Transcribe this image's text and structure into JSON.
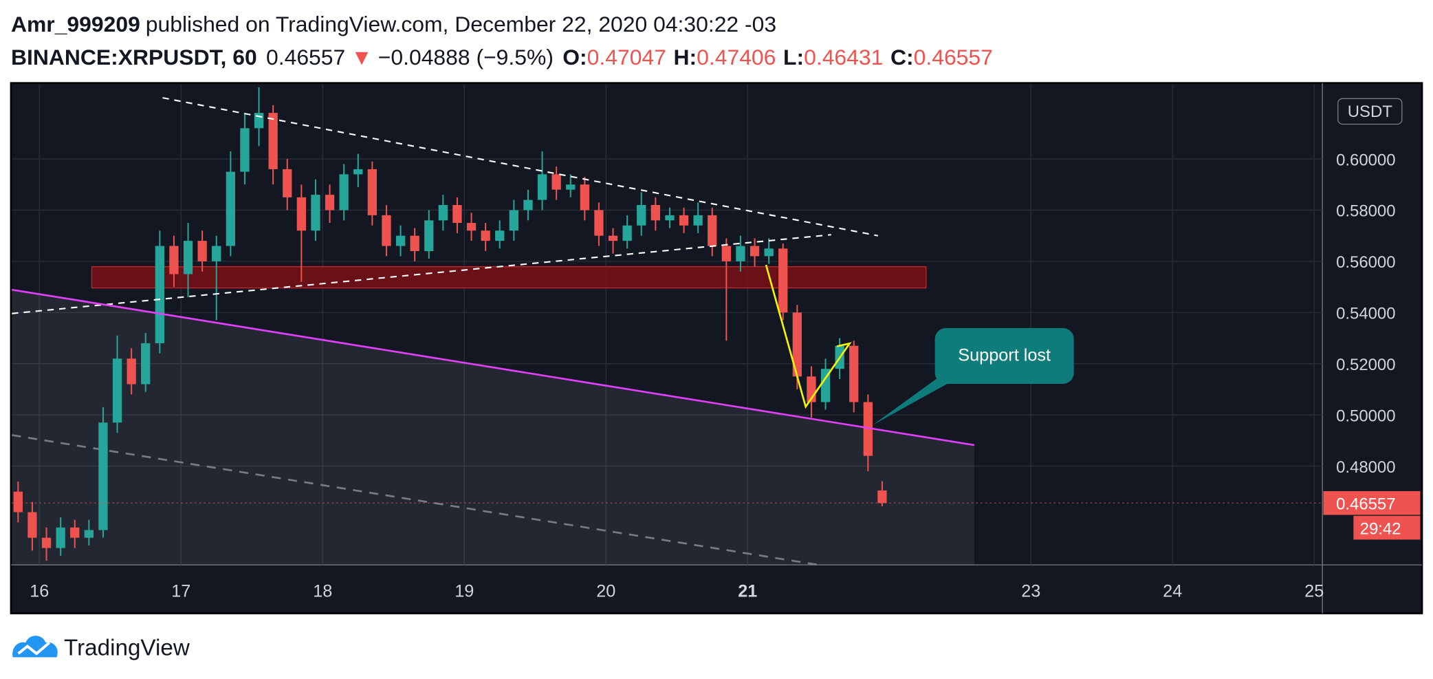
{
  "header": {
    "publisher": "Amr_999209",
    "published": "published on TradingView.com, December 22, 2020 04:30:22 -03",
    "symbol": "BINANCE:XRPUSDT, 60",
    "last": "0.46557",
    "arrow": "▼",
    "change": "−0.04888 (−9.5%)",
    "o_label": "O:",
    "o": "0.47047",
    "h_label": "H:",
    "h": "0.47406",
    "l_label": "L:",
    "l": "0.46431",
    "c_label": "C:",
    "c": "0.46557"
  },
  "chart_data": {
    "type": "candlestick",
    "x": [
      15.85,
      15.95,
      16.05,
      16.15,
      16.25,
      16.35,
      16.45,
      16.55,
      16.65,
      16.75,
      16.85,
      16.95,
      17.05,
      17.15,
      17.25,
      17.35,
      17.45,
      17.55,
      17.65,
      17.75,
      17.85,
      17.95,
      18.05,
      18.15,
      18.25,
      18.35,
      18.45,
      18.55,
      18.65,
      18.75,
      18.85,
      18.95,
      19.05,
      19.15,
      19.25,
      19.35,
      19.45,
      19.55,
      19.65,
      19.75,
      19.85,
      19.95,
      20.05,
      20.15,
      20.25,
      20.35,
      20.45,
      20.55,
      20.65,
      20.75,
      20.85,
      20.95,
      21.05,
      21.15,
      21.25,
      21.35,
      21.45,
      21.55,
      21.65,
      21.75,
      21.85,
      21.95
    ],
    "open": [
      0.47,
      0.462,
      0.452,
      0.448,
      0.456,
      0.452,
      0.455,
      0.497,
      0.522,
      0.512,
      0.528,
      0.566,
      0.555,
      0.568,
      0.56,
      0.566,
      0.595,
      0.612,
      0.618,
      0.596,
      0.585,
      0.572,
      0.586,
      0.58,
      0.594,
      0.596,
      0.578,
      0.566,
      0.57,
      0.564,
      0.576,
      0.582,
      0.575,
      0.572,
      0.568,
      0.572,
      0.58,
      0.584,
      0.594,
      0.588,
      0.59,
      0.58,
      0.57,
      0.568,
      0.574,
      0.582,
      0.576,
      0.578,
      0.574,
      0.578,
      0.566,
      0.56,
      0.566,
      0.562,
      0.565,
      0.54,
      0.515,
      0.505,
      0.518,
      0.527,
      0.505,
      0.47047
    ],
    "high": [
      0.474,
      0.466,
      0.456,
      0.46,
      0.459,
      0.459,
      0.503,
      0.531,
      0.526,
      0.532,
      0.572,
      0.57,
      0.575,
      0.572,
      0.57,
      0.603,
      0.618,
      0.628,
      0.621,
      0.6,
      0.59,
      0.592,
      0.59,
      0.598,
      0.602,
      0.599,
      0.582,
      0.574,
      0.573,
      0.58,
      0.586,
      0.585,
      0.579,
      0.575,
      0.576,
      0.584,
      0.588,
      0.603,
      0.597,
      0.594,
      0.593,
      0.583,
      0.573,
      0.578,
      0.587,
      0.585,
      0.581,
      0.581,
      0.583,
      0.581,
      0.569,
      0.57,
      0.569,
      0.569,
      0.567,
      0.543,
      0.519,
      0.522,
      0.53,
      0.529,
      0.508,
      0.47406
    ],
    "low": [
      0.458,
      0.447,
      0.443,
      0.445,
      0.448,
      0.449,
      0.452,
      0.493,
      0.508,
      0.509,
      0.524,
      0.55,
      0.546,
      0.556,
      0.537,
      0.562,
      0.59,
      0.605,
      0.59,
      0.58,
      0.552,
      0.568,
      0.575,
      0.576,
      0.589,
      0.574,
      0.562,
      0.562,
      0.56,
      0.561,
      0.572,
      0.571,
      0.568,
      0.564,
      0.565,
      0.568,
      0.576,
      0.58,
      0.584,
      0.585,
      0.576,
      0.566,
      0.563,
      0.565,
      0.57,
      0.572,
      0.573,
      0.571,
      0.571,
      0.562,
      0.529,
      0.556,
      0.558,
      0.559,
      0.537,
      0.51,
      0.499,
      0.502,
      0.514,
      0.501,
      0.478,
      0.46431
    ],
    "close": [
      0.462,
      0.452,
      0.448,
      0.456,
      0.452,
      0.455,
      0.497,
      0.522,
      0.512,
      0.528,
      0.566,
      0.555,
      0.568,
      0.56,
      0.566,
      0.595,
      0.612,
      0.618,
      0.596,
      0.585,
      0.572,
      0.586,
      0.58,
      0.594,
      0.596,
      0.578,
      0.566,
      0.57,
      0.564,
      0.576,
      0.582,
      0.575,
      0.572,
      0.568,
      0.572,
      0.58,
      0.584,
      0.594,
      0.588,
      0.59,
      0.58,
      0.57,
      0.568,
      0.574,
      0.582,
      0.576,
      0.578,
      0.574,
      0.578,
      0.566,
      0.56,
      0.566,
      0.562,
      0.565,
      0.54,
      0.515,
      0.505,
      0.518,
      0.527,
      0.505,
      0.484,
      0.46557
    ],
    "up_color": "#26a69a",
    "down_color": "#ef5350",
    "xlim": [
      15.806,
      25.058
    ],
    "ylim": [
      0.4414,
      0.6293
    ],
    "xticks": [
      16,
      17,
      18,
      19,
      20,
      21,
      23,
      24,
      25
    ],
    "highlight_xtick": 21,
    "yticks": [
      {
        "value": 0.6,
        "label": "0.60000"
      },
      {
        "value": 0.58,
        "label": "0.58000"
      },
      {
        "value": 0.56,
        "label": "0.56000"
      },
      {
        "value": 0.54,
        "label": "0.54000"
      },
      {
        "value": 0.52,
        "label": "0.52000"
      },
      {
        "value": 0.5,
        "label": "0.50000"
      },
      {
        "value": 0.48,
        "label": "0.48000"
      }
    ],
    "grid": true,
    "currency": "USDT",
    "last_price": {
      "value": 0.46557,
      "label": "0.46557"
    },
    "countdown": "29:42",
    "drawings": {
      "zone": {
        "x": [
          16.37,
          22.26
        ],
        "y": [
          0.5496,
          0.5579
        ],
        "color": "#7a1016"
      },
      "trend_support": {
        "x": [
          15.806,
          22.6
        ],
        "y": [
          0.5489,
          0.4882
        ],
        "color": "#e040fb"
      },
      "upper_channel": {
        "x": [
          16.87,
          21.92
        ],
        "y": [
          0.6239,
          0.57
        ]
      },
      "lower_channel": {
        "x": [
          15.806,
          21.59
        ],
        "y": [
          0.5396,
          0.5704
        ]
      },
      "grey_channel": {
        "x": [
          15.806,
          21.5
        ],
        "y": [
          0.4921,
          0.4414
        ]
      },
      "pattern": {
        "x": [
          21.13,
          21.41,
          21.72,
          21.63
        ],
        "y": [
          0.5586,
          0.5032,
          0.5279,
          0.5268
        ],
        "color": "#f5f500"
      }
    },
    "annotation": "Support lost"
  },
  "footer": {
    "brand": "TradingView"
  }
}
